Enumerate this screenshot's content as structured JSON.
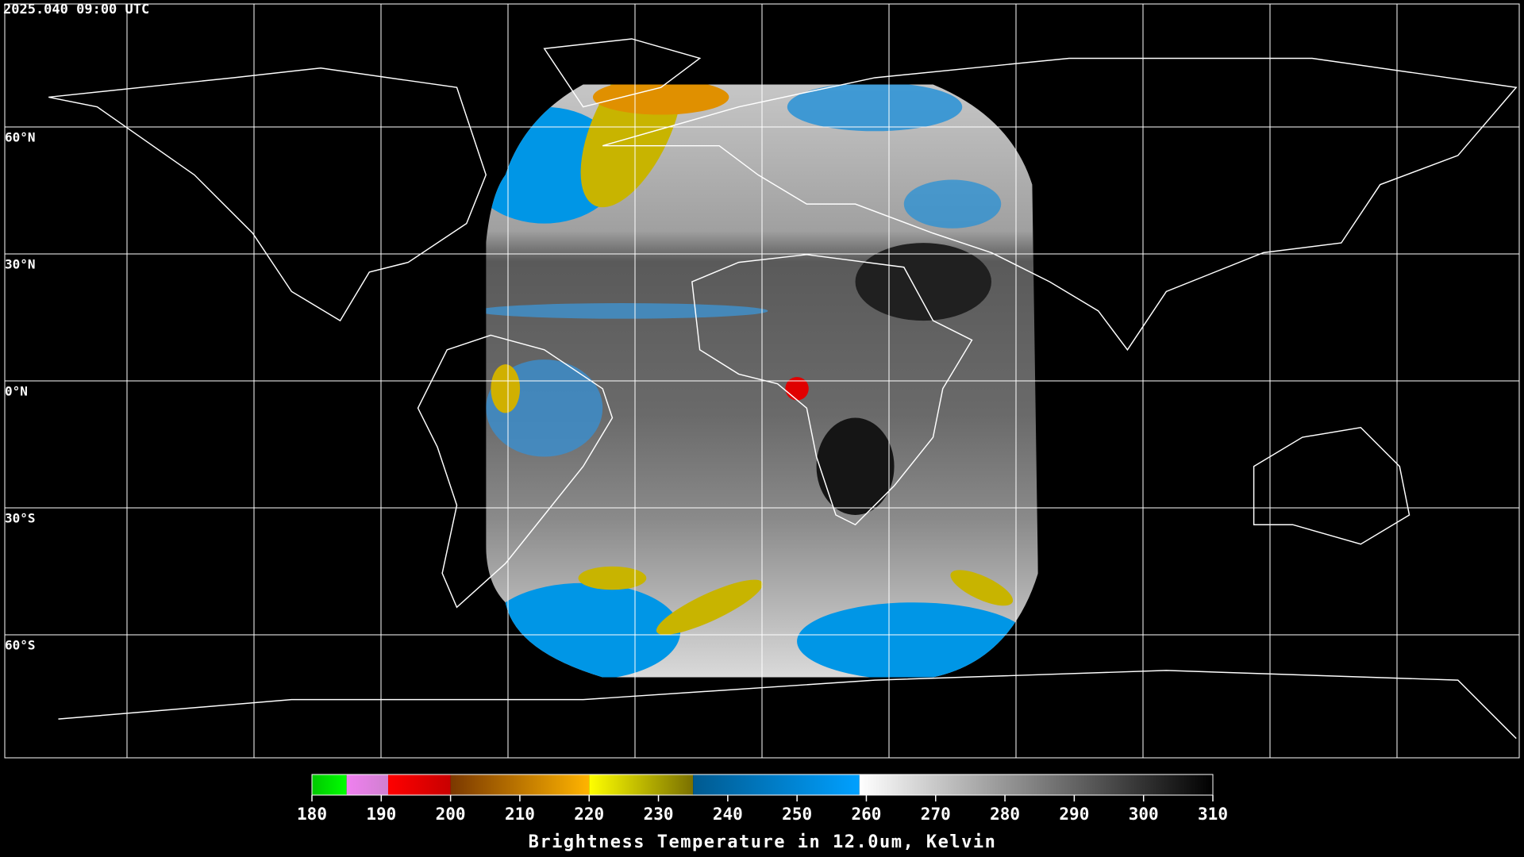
{
  "header": {
    "timestamp": "2025.040 09:00 UTC"
  },
  "map": {
    "latitude_labels": [
      "60°N",
      "30°N",
      "0°N",
      "30°S",
      "60°S"
    ]
  },
  "colorbar": {
    "title": "Brightness Temperature in 12.0um, Kelvin",
    "range": [
      180,
      310
    ],
    "ticks": [
      180,
      190,
      200,
      210,
      220,
      230,
      240,
      250,
      260,
      270,
      280,
      290,
      300,
      310
    ],
    "segments": [
      {
        "from": 180,
        "to": 185,
        "colors": [
          "#00c800",
          "#00ff00"
        ]
      },
      {
        "from": 185,
        "to": 191,
        "colors": [
          "#f080f0",
          "#d080d0"
        ]
      },
      {
        "from": 191,
        "to": 200,
        "colors": [
          "#ff0000",
          "#c80000"
        ]
      },
      {
        "from": 200,
        "to": 220,
        "colors": [
          "#7a3800",
          "#ffb400"
        ]
      },
      {
        "from": 220,
        "to": 235,
        "colors": [
          "#ffff00",
          "#7a7000"
        ]
      },
      {
        "from": 235,
        "to": 259,
        "colors": [
          "#005a90",
          "#00a0ff"
        ]
      },
      {
        "from": 259,
        "to": 310,
        "colors": [
          "#ffffff",
          "#000000"
        ]
      }
    ]
  }
}
